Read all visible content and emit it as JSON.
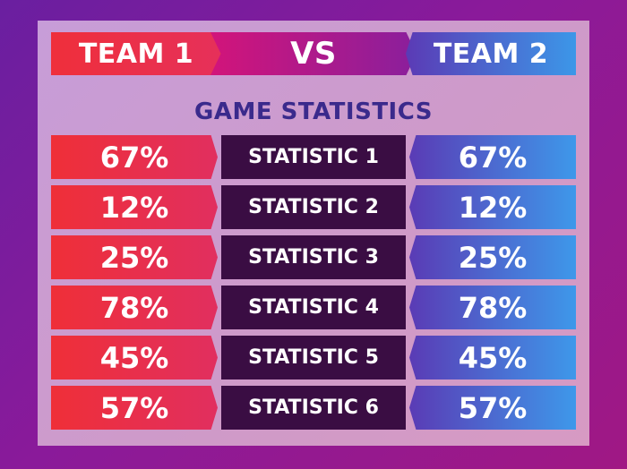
{
  "header": {
    "team1": "TEAM 1",
    "vs": "VS",
    "team2": "TEAM 2"
  },
  "section_title": "GAME STATISTICS",
  "stats": [
    {
      "label": "STATISTIC 1",
      "team1": "67%",
      "team2": "67%"
    },
    {
      "label": "STATISTIC 2",
      "team1": "12%",
      "team2": "12%"
    },
    {
      "label": "STATISTIC 3",
      "team1": "25%",
      "team2": "25%"
    },
    {
      "label": "STATISTIC 4",
      "team1": "78%",
      "team2": "78%"
    },
    {
      "label": "STATISTIC 5",
      "team1": "45%",
      "team2": "45%"
    },
    {
      "label": "STATISTIC 6",
      "team1": "57%",
      "team2": "57%"
    }
  ],
  "colors": {
    "team1": "#ef2f3b",
    "team2": "#3c97e8",
    "label_bg": "#3a0d43",
    "title": "#3a2a8c"
  }
}
